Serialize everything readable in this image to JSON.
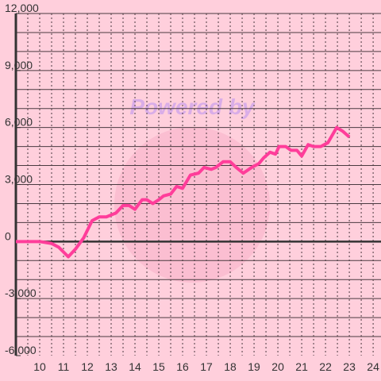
{
  "chart_data": {
    "type": "line",
    "watermark": "Powered by",
    "x": [
      9,
      10,
      10.5,
      10.8,
      11.2,
      11.5,
      11.85,
      12.2,
      12.5,
      12.8,
      13.2,
      13.5,
      13.75,
      14,
      14.3,
      14.5,
      14.75,
      15,
      15.2,
      15.5,
      15.75,
      16,
      16.33,
      16.67,
      16.9,
      17.2,
      17.4,
      17.7,
      18,
      18.25,
      18.55,
      18.9,
      19.2,
      19.4,
      19.67,
      19.9,
      20.05,
      20.33,
      20.55,
      20.8,
      21,
      21.27,
      21.5,
      21.8,
      22.1,
      22.47,
      22.73,
      23
    ],
    "values": [
      0,
      0,
      -100,
      -300,
      -800,
      -400,
      200,
      1100,
      1300,
      1300,
      1500,
      1900,
      1900,
      1700,
      2200,
      2200,
      2000,
      2200,
      2400,
      2500,
      2900,
      2800,
      3500,
      3600,
      3900,
      3800,
      3900,
      4200,
      4200,
      3900,
      3600,
      3900,
      4100,
      4400,
      4700,
      4600,
      5000,
      5000,
      4800,
      4800,
      4500,
      5100,
      5000,
      5000,
      5200,
      6000,
      5800,
      5500
    ],
    "color": "#ff3d9a",
    "xlim": [
      9,
      24.33
    ],
    "xticks": [
      10,
      11,
      12,
      13,
      14,
      15,
      16,
      17,
      18,
      19,
      20,
      21,
      22,
      23,
      24
    ],
    "ylim": [
      -6000,
      12000
    ],
    "yticks": [
      {
        "value": 12000,
        "label": "12,000"
      },
      {
        "value": 9000,
        "label": "9,000"
      },
      {
        "value": 6000,
        "label": "6,000"
      },
      {
        "value": 3000,
        "label": "3,000"
      },
      0,
      {
        "value": -3000,
        "label": "-3,000"
      },
      {
        "value": -6000,
        "label": "-6,000"
      }
    ],
    "ygrid": [
      -5000,
      -4000,
      -3000,
      -2000,
      -1000,
      1000,
      2000,
      3000,
      4000,
      5000,
      6000,
      7000,
      8000,
      9000,
      10000,
      11000,
      12000
    ],
    "xgrid": [
      9.5,
      10,
      10.5,
      11,
      11.5,
      12,
      12.5,
      13,
      13.5,
      14,
      14.5,
      15,
      15.5,
      16,
      16.5,
      17,
      17.5,
      18,
      18.5,
      19,
      19.5,
      20,
      20.5,
      21,
      21.5,
      22,
      22.5,
      23,
      23.5,
      24
    ],
    "grid": true
  }
}
